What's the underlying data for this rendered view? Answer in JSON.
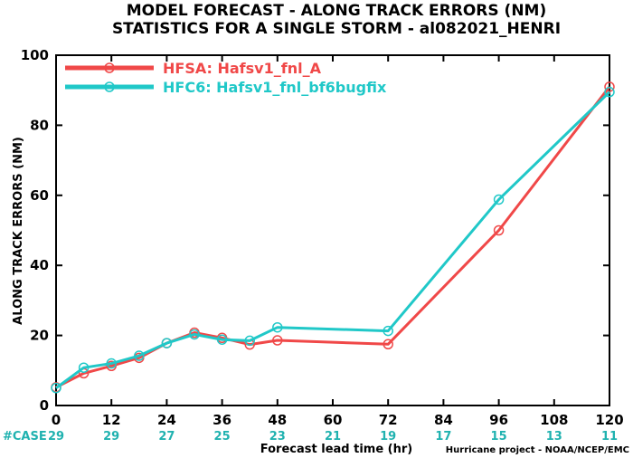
{
  "chart_data": {
    "type": "line",
    "title": "MODEL FORECAST - ALONG TRACK ERRORS (NM)",
    "subtitle": "STATISTICS FOR A SINGLE STORM - al082021_HENRI",
    "xlabel": "Forecast lead time (hr)",
    "ylabel": "ALONG TRACK ERRORS (NM)",
    "xlim": [
      0,
      120
    ],
    "ylim": [
      0,
      100
    ],
    "xticks": [
      0,
      12,
      24,
      36,
      48,
      60,
      72,
      84,
      96,
      108,
      120
    ],
    "yticks": [
      0,
      20,
      40,
      60,
      80,
      100
    ],
    "grid": false,
    "legend_position": "top-left",
    "case_label": "#CASE",
    "case_x": [
      0,
      12,
      24,
      36,
      48,
      60,
      72,
      84,
      96,
      108,
      120
    ],
    "case_counts": [
      "29",
      "29",
      "27",
      "25",
      "23",
      "21",
      "19",
      "17",
      "15",
      "13",
      "11"
    ],
    "case_color": "#20b2b0",
    "credit": "Hurricane project - NOAA/NCEP/EMC",
    "series": [
      {
        "name": "HFSA: Hafsv1_fnl_A",
        "color": "#f04848",
        "x": [
          0,
          6,
          12,
          18,
          24,
          30,
          36,
          42,
          48,
          72,
          96,
          120
        ],
        "y": [
          5.2,
          9.2,
          11.3,
          13.6,
          17.8,
          20.8,
          19.3,
          17.4,
          18.6,
          17.5,
          50.0,
          91.0
        ]
      },
      {
        "name": "HFC6: Hafsv1_fnl_bf6bugfix",
        "color": "#20c8c8",
        "x": [
          0,
          6,
          12,
          18,
          24,
          30,
          36,
          42,
          48,
          72,
          96,
          120
        ],
        "y": [
          5.0,
          10.8,
          12.0,
          14.2,
          17.8,
          20.3,
          18.8,
          18.5,
          22.3,
          21.3,
          58.8,
          89.5
        ]
      }
    ]
  }
}
